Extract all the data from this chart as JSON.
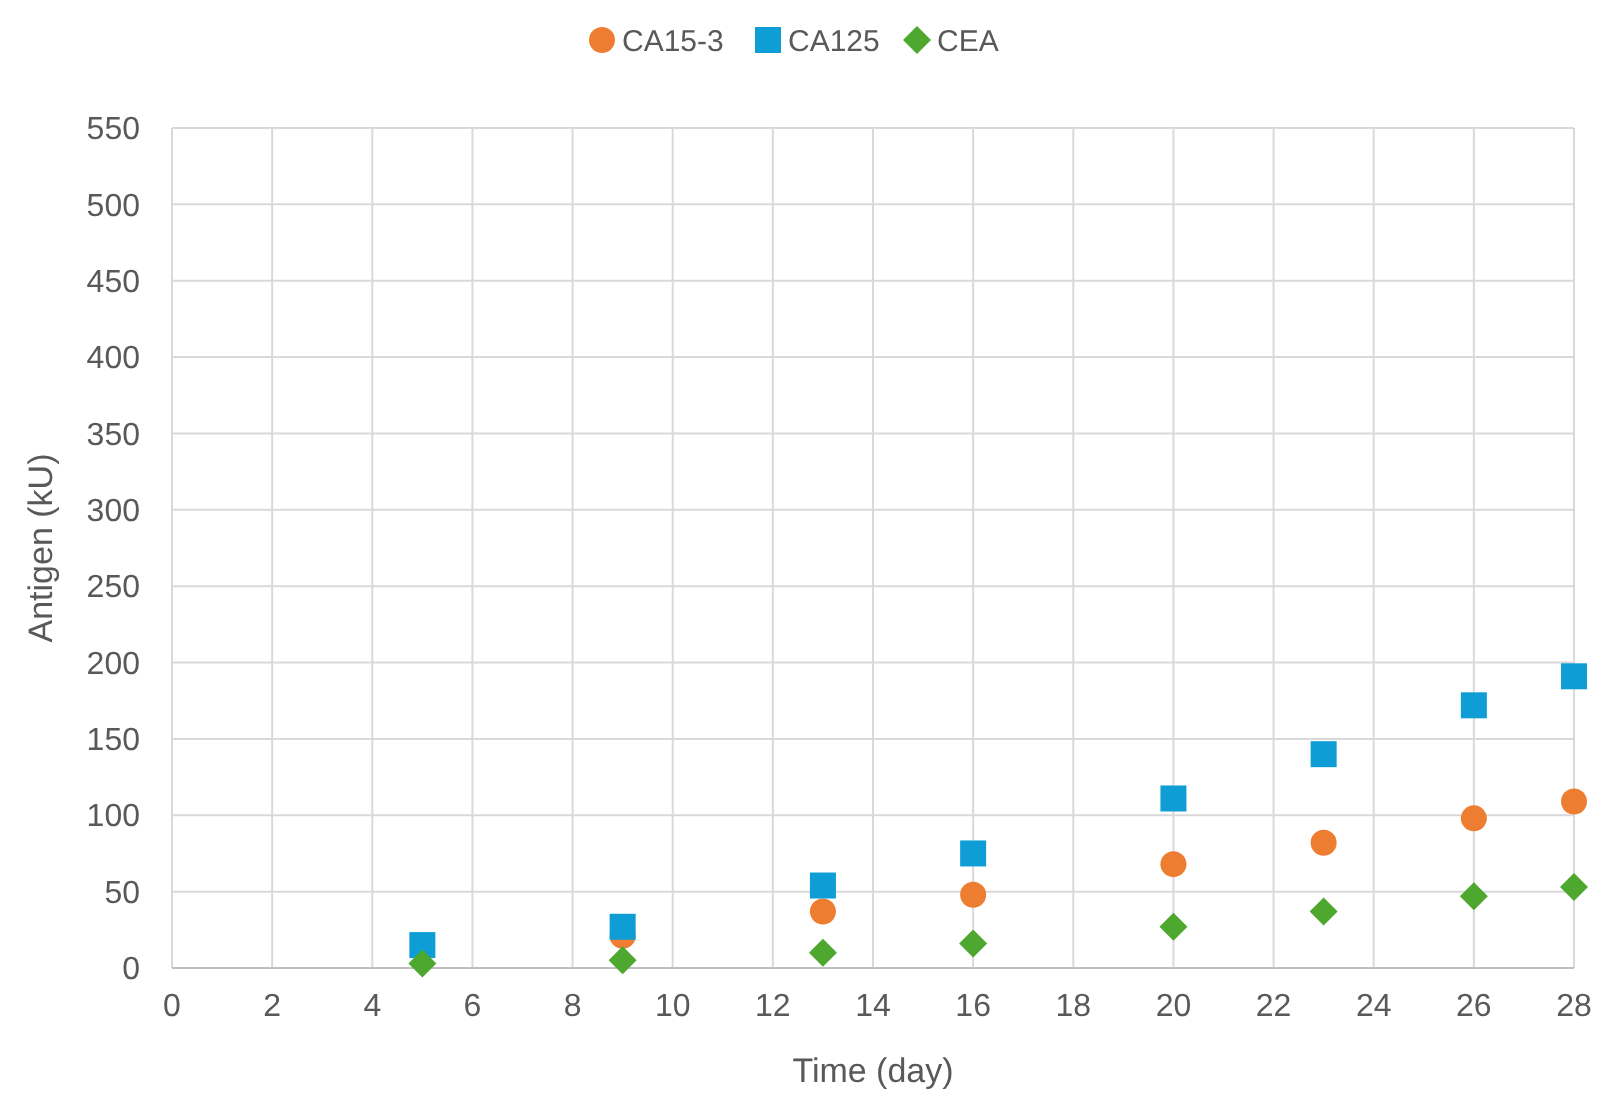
{
  "chart_data": {
    "type": "scatter",
    "xlabel": "Time (day)",
    "ylabel": "Antigen (kU)",
    "x": [
      5,
      9,
      13,
      16,
      20,
      23,
      26,
      28
    ],
    "series": [
      {
        "name": "CA15-3",
        "color": "#ed7d31",
        "marker": "circle",
        "values": [
          null,
          21,
          37,
          48,
          68,
          82,
          98,
          109
        ]
      },
      {
        "name": "CA125",
        "color": "#0e9ed5",
        "marker": "square",
        "values": [
          15,
          27,
          54,
          75,
          111,
          140,
          172,
          191
        ]
      },
      {
        "name": "CEA",
        "color": "#4ea72e",
        "marker": "diamond",
        "values": [
          3,
          5,
          10,
          16,
          27,
          37,
          47,
          53
        ]
      }
    ],
    "xlim": [
      0,
      28
    ],
    "xticks": [
      0,
      2,
      4,
      6,
      8,
      10,
      12,
      14,
      16,
      18,
      20,
      22,
      24,
      26,
      28
    ],
    "ylim": [
      0,
      550
    ],
    "yticks": [
      0,
      50,
      100,
      150,
      200,
      250,
      300,
      350,
      400,
      450,
      500,
      550
    ],
    "grid": true,
    "legend": "top"
  }
}
